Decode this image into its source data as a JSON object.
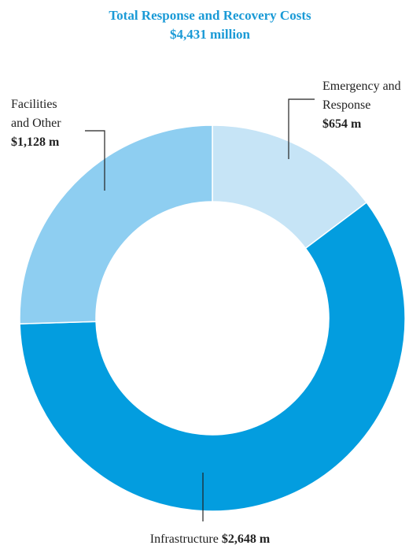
{
  "chart_data": {
    "type": "donut",
    "title": "Total Response and Recovery Costs",
    "subtitle": "$4,431 million",
    "categories": [
      "Emergency and Response",
      "Infrastructure",
      "Facilities and Other"
    ],
    "values": [
      654,
      2648,
      1128
    ],
    "value_labels": [
      "$654 m",
      "$2,648 m",
      "$1,128 m"
    ],
    "colors": [
      "#c6e4f6",
      "#039ddf",
      "#8ecef1"
    ]
  }
}
